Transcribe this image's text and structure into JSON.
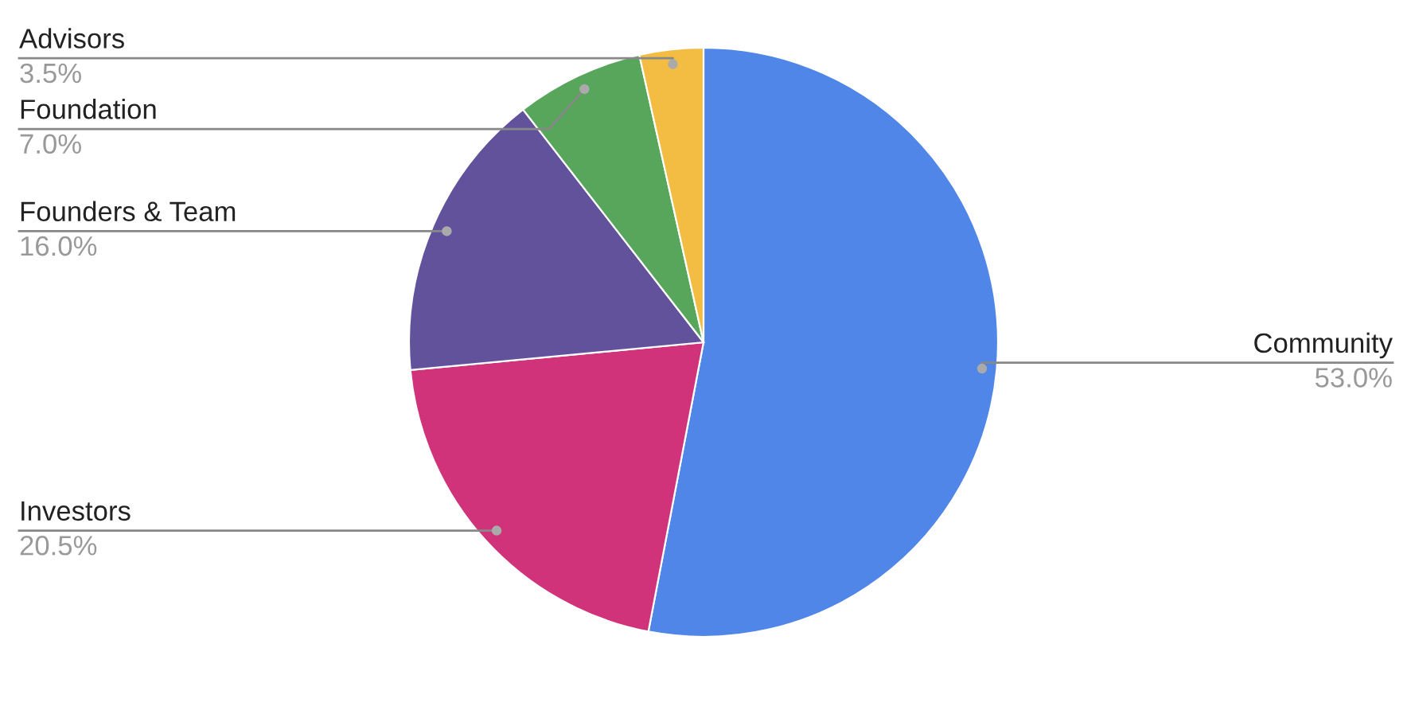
{
  "chart_data": {
    "type": "pie",
    "categories": [
      "Community",
      "Investors",
      "Founders & Team",
      "Foundation",
      "Advisors"
    ],
    "values": [
      53.0,
      20.5,
      16.0,
      7.0,
      3.5
    ],
    "colors": [
      "#4f86e8",
      "#d0337a",
      "#62529c",
      "#58a55c",
      "#f2bd42"
    ],
    "value_labels": [
      "53.0%",
      "20.5%",
      "16.0%",
      "7.0%",
      "3.5%"
    ],
    "legend": false
  }
}
